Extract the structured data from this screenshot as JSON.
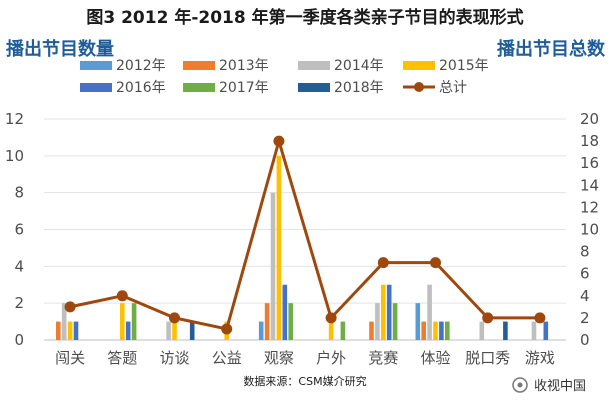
{
  "chart_data": {
    "type": "bar",
    "title": "图3 2012 年-2018 年第一季度各类亲子节目的表现形式",
    "ylabel_left": "播出节目数量",
    "ylabel_right": "播出节目总数",
    "categories": [
      "闯关",
      "答题",
      "访谈",
      "公益",
      "观察",
      "户外",
      "竞赛",
      "体验",
      "脱口秀",
      "游戏"
    ],
    "ylim_left": [
      0,
      12
    ],
    "yticks_left": [
      "0",
      "2",
      "4",
      "6",
      "8",
      "10",
      "12"
    ],
    "ylim_right": [
      0,
      20
    ],
    "yticks_right": [
      "0",
      "2",
      "4",
      "6",
      "8",
      "10",
      "12",
      "14",
      "16",
      "18",
      "20"
    ],
    "series": [
      {
        "name": "2012年",
        "color": "#5b9bd5",
        "values": [
          0,
          0,
          0,
          0,
          1,
          0,
          0,
          2,
          0,
          0
        ]
      },
      {
        "name": "2013年",
        "color": "#ed7d31",
        "values": [
          1,
          0,
          0,
          0,
          2,
          0,
          1,
          1,
          0,
          0
        ]
      },
      {
        "name": "2014年",
        "color": "#bfbfbf",
        "values": [
          2,
          0,
          1,
          0,
          8,
          0,
          2,
          3,
          1,
          1
        ]
      },
      {
        "name": "2015年",
        "color": "#ffc000",
        "values": [
          1,
          2,
          1,
          1,
          10,
          1,
          3,
          1,
          0,
          0
        ]
      },
      {
        "name": "2016年",
        "color": "#4472c4",
        "values": [
          1,
          1,
          0,
          0,
          3,
          0,
          3,
          1,
          0,
          1
        ]
      },
      {
        "name": "2017年",
        "color": "#70ad47",
        "values": [
          0,
          2,
          0,
          0,
          2,
          1,
          2,
          1,
          0,
          0
        ]
      },
      {
        "name": "2018年",
        "color": "#255e91",
        "values": [
          0,
          0,
          1,
          0,
          0,
          0,
          0,
          0,
          1,
          0
        ]
      }
    ],
    "total": {
      "name": "总计",
      "color": "#9e480e",
      "axis": "right",
      "values": [
        3,
        4,
        2,
        1,
        18,
        2,
        7,
        7,
        2,
        2
      ]
    },
    "grid": true,
    "legend": "top"
  },
  "footer": {
    "source": "数据来源：CSM媒介研究",
    "watermark": "收视中国"
  }
}
